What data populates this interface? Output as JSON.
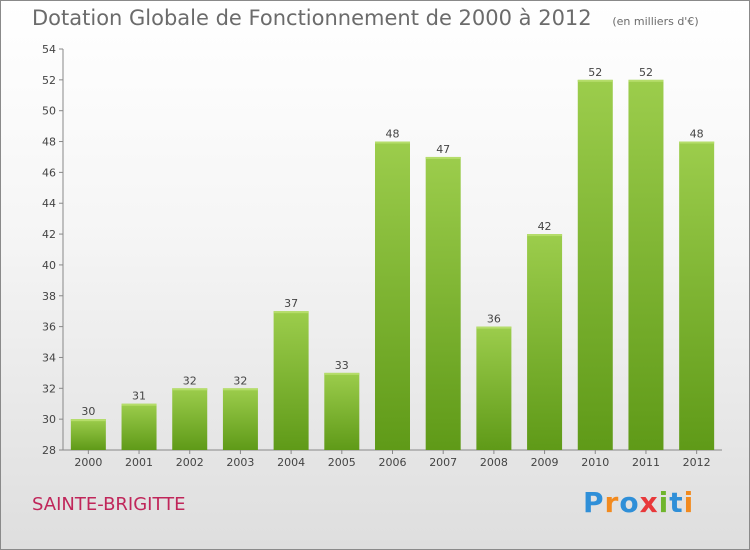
{
  "header": {
    "title": "Dotation Globale de Fonctionnement de 2000 à 2012",
    "subtitle": "(en milliers d'€)"
  },
  "footer": {
    "commune": "SAINTE-BRIGITTE",
    "logo_letters": [
      {
        "char": "P",
        "color": "#2f8fd8"
      },
      {
        "char": "r",
        "color": "#f28a1e"
      },
      {
        "char": "o",
        "color": "#2f8fd8"
      },
      {
        "char": "x",
        "color": "#e8383a"
      },
      {
        "char": "i",
        "color": "#6fb52c"
      },
      {
        "char": "t",
        "color": "#2f8fd8"
      },
      {
        "char": "i",
        "color": "#f28a1e"
      }
    ]
  },
  "chart_data": {
    "type": "bar",
    "title": "Dotation Globale de Fonctionnement de 2000 à 2012",
    "subtitle": "(en milliers d'€)",
    "categories": [
      "2000",
      "2001",
      "2002",
      "2003",
      "2004",
      "2005",
      "2006",
      "2007",
      "2008",
      "2009",
      "2010",
      "2011",
      "2012"
    ],
    "values": [
      30,
      31,
      32,
      32,
      37,
      33,
      48,
      47,
      36,
      42,
      52,
      52,
      48
    ],
    "ylim": [
      28,
      54
    ],
    "yticks": [
      28,
      30,
      32,
      34,
      36,
      38,
      40,
      42,
      44,
      46,
      48,
      50,
      52,
      54
    ],
    "grid": false,
    "bar_color_top": "#9ccd4c",
    "bar_color_bottom": "#5f9a18",
    "axis_color": "#888888",
    "text_color": "#444444"
  }
}
